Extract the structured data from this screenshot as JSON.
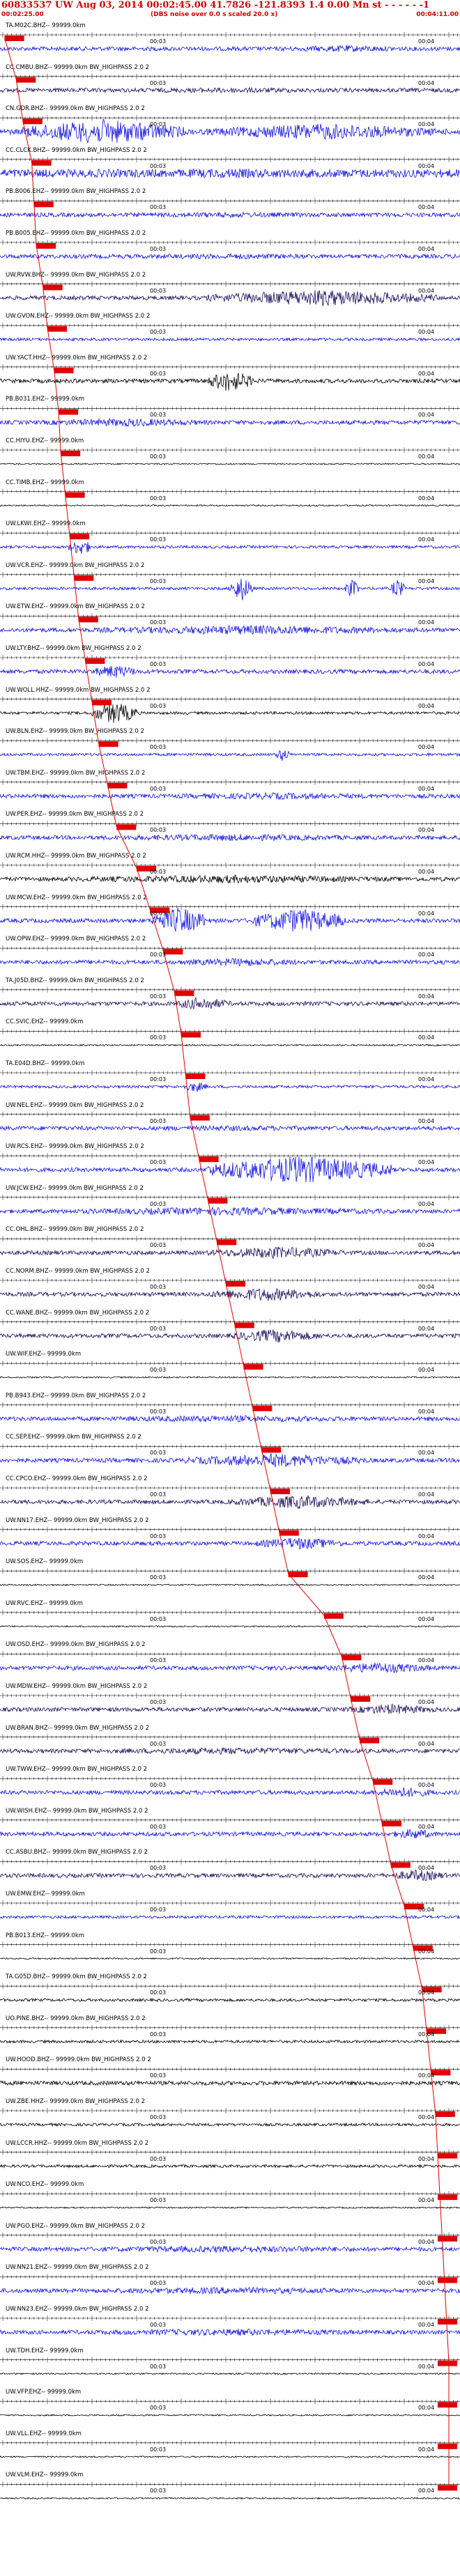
{
  "header": {
    "title": "60833537 UW Aug 03, 2014 00:02:45.00   41.7826 -121.8393  1.4 0.00 Mn st - - - - - -1",
    "start_time": "00:02:25.00",
    "note": "(DBS noise over 0.0 s scaled 20.0 x)",
    "end_time": "00:04:11.00"
  },
  "time_labels": [
    "00:03",
    "00:04"
  ],
  "colors": {
    "pick": "#e00000",
    "trace_blue": "#1010e0",
    "trace_black": "#000000",
    "trace_navy": "#1a0a5a",
    "header_text": "#d00000"
  },
  "traces": [
    {
      "label": "TA.M02C.BHZ-- 99999.0km",
      "color": "#1010e0",
      "amp": 3,
      "pick": 0.004,
      "bursts": [
        [
          0.55,
          0.95,
          5
        ]
      ]
    },
    {
      "label": "CC.CMBU.BHZ-- 99999.0km BW_HIGHPASS  2.0  2",
      "color": "#1a0a5a",
      "amp": 3,
      "pick": 0.03,
      "bursts": [
        [
          0.05,
          0.95,
          4
        ]
      ]
    },
    {
      "label": "CN.GDR.BHZ-- 99999.0km BW_HIGHPASS  2.0  2",
      "color": "#1010e0",
      "amp": 4,
      "pick": 0.045,
      "bursts": [
        [
          0.05,
          0.4,
          18
        ],
        [
          0.45,
          0.95,
          12
        ]
      ]
    },
    {
      "label": "CC.CLCK.BHZ-- 99999.0km BW_HIGHPASS  2.0  2",
      "color": "#1010e0",
      "amp": 6,
      "pick": 0.065,
      "bursts": [
        [
          0.02,
          0.98,
          7
        ]
      ]
    },
    {
      "label": "PB.B006.EHZ-- 99999.0km BW_HIGHPASS  2.0  2",
      "color": "#1010e0",
      "amp": 3,
      "pick": 0.07,
      "bursts": [
        [
          0.02,
          0.98,
          4
        ]
      ]
    },
    {
      "label": "PB.B005.EHZ-- 99999.0km BW_HIGHPASS  2.0  2",
      "color": "#1010e0",
      "amp": 3,
      "pick": 0.075,
      "bursts": [
        [
          0.02,
          0.98,
          4
        ]
      ]
    },
    {
      "label": "UW.RVW.BHZ-- 99999.0km BW_HIGHPASS  2.0  2",
      "color": "#1a0a5a",
      "amp": 3,
      "pick": 0.09,
      "bursts": [
        [
          0.45,
          0.95,
          12
        ]
      ]
    },
    {
      "label": "UW.GVON.EHZ-- 99999.0km BW_HIGHPASS  2.0  2",
      "color": "#1010e0",
      "amp": 2,
      "pick": 0.1,
      "bursts": []
    },
    {
      "label": "UW.YACT.HHZ-- 99999.0km BW_HIGHPASS  2.0  2",
      "color": "#000000",
      "amp": 3,
      "pick": 0.115,
      "bursts": [
        [
          0.45,
          0.55,
          16
        ]
      ]
    },
    {
      "label": "PB.B031.EHZ-- 99999.0km",
      "color": "#1010e0",
      "amp": 3,
      "pick": 0.125,
      "bursts": [
        [
          0.05,
          0.5,
          6
        ]
      ]
    },
    {
      "label": "CC.HIYU.EHZ-- 99999.0km",
      "color": "#000000",
      "amp": 1,
      "pick": 0.13,
      "bursts": []
    },
    {
      "label": "CC.TIMB.EHZ-- 99999.0km",
      "color": "#000000",
      "amp": 1,
      "pick": 0.14,
      "bursts": []
    },
    {
      "label": "UW.LKWI.EHZ-- 99999.0km",
      "color": "#1010e0",
      "amp": 2,
      "pick": 0.15,
      "bursts": [
        [
          0.15,
          0.2,
          12
        ]
      ]
    },
    {
      "label": "UW.VCR.EHZ-- 99999.0km BW_HIGHPASS  2.0  2",
      "color": "#1010e0",
      "amp": 2,
      "pick": 0.16,
      "bursts": [
        [
          0.5,
          0.55,
          18
        ],
        [
          0.75,
          0.78,
          14
        ],
        [
          0.85,
          0.88,
          14
        ]
      ]
    },
    {
      "label": "UW.ETW.EHZ-- 99999.0km BW_HIGHPASS  2.0  2",
      "color": "#1010e0",
      "amp": 3,
      "pick": 0.17,
      "bursts": [
        [
          0.15,
          0.95,
          7
        ]
      ]
    },
    {
      "label": "UW.LTY.BHZ-- 99999.0km BW_HIGHPASS  2.0  2",
      "color": "#1010e0",
      "amp": 3,
      "pick": 0.185,
      "bursts": [
        [
          0.2,
          0.3,
          10
        ]
      ]
    },
    {
      "label": "UW.WOLL.HHZ-- 99999.0km BW_HIGHPASS  2.0  2",
      "color": "#000000",
      "amp": 2,
      "pick": 0.2,
      "bursts": [
        [
          0.2,
          0.3,
          16
        ]
      ]
    },
    {
      "label": "UW.BLN.EHZ-- 99999.0km BW_HIGHPASS  2.0  2",
      "color": "#1010e0",
      "amp": 2,
      "pick": 0.215,
      "bursts": [
        [
          0.6,
          0.63,
          10
        ]
      ]
    },
    {
      "label": "UW.TBM.EHZ-- 99999.0km BW_HIGHPASS  2.0  2",
      "color": "#1010e0",
      "amp": 3,
      "pick": 0.235,
      "bursts": [
        [
          0.25,
          0.95,
          5
        ]
      ]
    },
    {
      "label": "UW.PER.EHZ-- 99999.0km BW_HIGHPASS  2.0  2",
      "color": "#1010e0",
      "amp": 3,
      "pick": 0.255,
      "bursts": [
        [
          0.05,
          0.95,
          5
        ]
      ]
    },
    {
      "label": "UW.RCM.HHZ-- 99999.0km BW_HIGHPASS  2.0  2",
      "color": "#000000",
      "amp": 3,
      "pick": 0.3,
      "bursts": [
        [
          0.05,
          0.95,
          6
        ]
      ]
    },
    {
      "label": "UW.MCW.EHZ-- 99999.0km BW_HIGHPASS  2.0  2",
      "color": "#1010e0",
      "amp": 3,
      "pick": 0.33,
      "bursts": [
        [
          0.33,
          0.45,
          20
        ],
        [
          0.55,
          0.75,
          18
        ]
      ]
    },
    {
      "label": "UW.OPW.EHZ-- 99999.0km BW_HIGHPASS  2.0  2",
      "color": "#1010e0",
      "amp": 3,
      "pick": 0.36,
      "bursts": [
        [
          0.35,
          0.7,
          6
        ]
      ]
    },
    {
      "label": "TA.J05D.BHZ-- 99999.0km BW_HIGHPASS  2.0  2",
      "color": "#1a0a5a",
      "amp": 3,
      "pick": 0.385,
      "bursts": [
        [
          0.38,
          0.5,
          10
        ]
      ]
    },
    {
      "label": "CC.SVIC.EHZ-- 99999.0km",
      "color": "#000000",
      "amp": 1,
      "pick": 0.4,
      "bursts": []
    },
    {
      "label": "TA.E04D.BHZ-- 99999.0km",
      "color": "#1010e0",
      "amp": 2,
      "pick": 0.41,
      "bursts": [
        [
          0.4,
          0.45,
          8
        ]
      ]
    },
    {
      "label": "UW.NEL.EHZ-- 99999.0km BW_HIGHPASS  2.0  2",
      "color": "#1010e0",
      "amp": 3,
      "pick": 0.42,
      "bursts": [
        [
          0.05,
          0.95,
          4
        ]
      ]
    },
    {
      "label": "UW.RCS.EHZ-- 99999.0km BW_HIGHPASS  2.0  2",
      "color": "#1010e0",
      "amp": 3,
      "pick": 0.44,
      "bursts": [
        [
          0.45,
          0.85,
          20
        ]
      ]
    },
    {
      "label": "UW.JCW.EHZ-- 99999.0km BW_HIGHPASS  2.0  2",
      "color": "#1010e0",
      "amp": 3,
      "pick": 0.46,
      "bursts": [
        [
          0.05,
          0.95,
          6
        ]
      ]
    },
    {
      "label": "CC.OHL.BHZ-- 99999.0km BW_HIGHPASS  2.0  2",
      "color": "#1a0a5a",
      "amp": 3,
      "pick": 0.48,
      "bursts": [
        [
          0.45,
          0.75,
          9
        ]
      ]
    },
    {
      "label": "CC.NORM.BHZ-- 99999.0km BW_HIGHPASS  2.0  2",
      "color": "#1a0a5a",
      "amp": 3,
      "pick": 0.5,
      "bursts": [
        [
          0.45,
          0.7,
          10
        ]
      ]
    },
    {
      "label": "CC.WANE.BHZ-- 99999.0km BW_HIGHPASS  2.0  2",
      "color": "#1a0a5a",
      "amp": 3,
      "pick": 0.52,
      "bursts": [
        [
          0.5,
          0.7,
          10
        ]
      ]
    },
    {
      "label": "UW.WIF.EHZ-- 99999.0km",
      "color": "#000000",
      "amp": 1,
      "pick": 0.54,
      "bursts": []
    },
    {
      "label": "PB.B943.EHZ-- 99999.0km BW_HIGHPASS  2.0  2",
      "color": "#1010e0",
      "amp": 3,
      "pick": 0.56,
      "bursts": [
        [
          0.05,
          0.95,
          5
        ]
      ]
    },
    {
      "label": "CC.SEP.EHZ-- 99999.0km BW_HIGHPASS  2.0  2",
      "color": "#1010e0",
      "amp": 3,
      "pick": 0.58,
      "bursts": [
        [
          0.4,
          0.8,
          10
        ]
      ]
    },
    {
      "label": "CC.CPCO.EHZ-- 99999.0km BW_HIGHPASS  2.0  2",
      "color": "#1a0a5a",
      "amp": 3,
      "pick": 0.6,
      "bursts": [
        [
          0.5,
          0.8,
          10
        ]
      ]
    },
    {
      "label": "UW.NN17.EHZ-- 99999.0km BW_HIGHPASS  2.0  2",
      "color": "#1010e0",
      "amp": 3,
      "pick": 0.62,
      "bursts": [
        [
          0.55,
          0.75,
          9
        ]
      ]
    },
    {
      "label": "UW.SOS.EHZ-- 99999.0km",
      "color": "#000000",
      "amp": 1,
      "pick": 0.64,
      "bursts": []
    },
    {
      "label": "UW.RVC.EHZ-- 99999.0km",
      "color": "#000000",
      "amp": 1,
      "pick": 0.72,
      "bursts": []
    },
    {
      "label": "UW.OSD.EHZ-- 99999.0km BW_HIGHPASS  2.0  2",
      "color": "#1010e0",
      "amp": 3,
      "pick": 0.76,
      "bursts": [
        [
          0.7,
          0.95,
          8
        ]
      ]
    },
    {
      "label": "UW.MDW.EHZ-- 99999.0km BW_HIGHPASS  2.0  2",
      "color": "#1a0a5a",
      "amp": 3,
      "pick": 0.78,
      "bursts": [
        [
          0.75,
          0.95,
          8
        ]
      ]
    },
    {
      "label": "UW.BRAN.BHZ-- 99999.0km BW_HIGHPASS  2.0  2",
      "color": "#1a0a5a",
      "amp": 3,
      "pick": 0.8,
      "bursts": [
        [
          0.05,
          0.95,
          5
        ]
      ]
    },
    {
      "label": "UW.TWW.EHZ-- 99999.0km BW_HIGHPASS  2.0  2",
      "color": "#1010e0",
      "amp": 3,
      "pick": 0.83,
      "bursts": [
        [
          0.8,
          0.95,
          8
        ]
      ]
    },
    {
      "label": "UW.WISH.EHZ-- 99999.0km BW_HIGHPASS  2.0  2",
      "color": "#1010e0",
      "amp": 3,
      "pick": 0.85,
      "bursts": [
        [
          0.85,
          0.95,
          8
        ]
      ]
    },
    {
      "label": "CC.ASBU.BHZ-- 99999.0km BW_HIGHPASS  2.0  2",
      "color": "#1a0a5a",
      "amp": 3,
      "pick": 0.87,
      "bursts": [
        [
          0.85,
          0.97,
          9
        ]
      ]
    },
    {
      "label": "UW.EMW.EHZ-- 99999.0km",
      "color": "#1010e0",
      "amp": 2,
      "pick": 0.9,
      "bursts": []
    },
    {
      "label": "PB.B013.EHZ-- 99999.0km",
      "color": "#000000",
      "amp": 1,
      "pick": 0.92,
      "bursts": []
    },
    {
      "label": "TA.G05D.BHZ-- 99999.0km BW_HIGHPASS  2.0  2",
      "color": "#000000",
      "amp": 2,
      "pick": 0.94,
      "bursts": []
    },
    {
      "label": "UO.PINE.BHZ-- 99999.0km BW_HIGHPASS  2.0  2",
      "color": "#000000",
      "amp": 2,
      "pick": 0.95,
      "bursts": []
    },
    {
      "label": "UW.HOOD.BHZ-- 99999.0km BW_HIGHPASS  2.0  2",
      "color": "#000000",
      "amp": 3,
      "pick": 0.96,
      "bursts": []
    },
    {
      "label": "UW.ZBE.HHZ-- 99999.0km BW_HIGHPASS  2.0  2",
      "color": "#000000",
      "amp": 2,
      "pick": 0.97,
      "bursts": []
    },
    {
      "label": "UW.LCCR.HHZ-- 99999.0km BW_HIGHPASS  2.0  2",
      "color": "#000000",
      "amp": 2,
      "pick": 0.975,
      "bursts": []
    },
    {
      "label": "UW.NCO.EHZ-- 99999.0km",
      "color": "#000000",
      "amp": 1,
      "pick": 0.98,
      "bursts": []
    },
    {
      "label": "UW.PGO.EHZ-- 99999.0km BW_HIGHPASS  2.0  2",
      "color": "#1010e0",
      "amp": 3,
      "pick": 0.985,
      "bursts": [
        [
          0.02,
          0.98,
          5
        ]
      ]
    },
    {
      "label": "UW.NN21.EHZ-- 99999.0km BW_HIGHPASS  2.0  2",
      "color": "#1010e0",
      "amp": 3,
      "pick": 0.99,
      "bursts": [
        [
          0.02,
          0.98,
          5
        ]
      ]
    },
    {
      "label": "UW.NN23.EHZ-- 99999.0km BW_HIGHPASS  2.0  2",
      "color": "#1010e0",
      "amp": 3,
      "pick": 0.995,
      "bursts": [
        [
          0.02,
          0.98,
          5
        ]
      ]
    },
    {
      "label": "UW.TDH.EHZ-- 99999.0km",
      "color": "#000000",
      "amp": 1,
      "pick": 1.0,
      "bursts": []
    },
    {
      "label": "UW.VFP.EHZ-- 99999.0km",
      "color": "#000000",
      "amp": 1,
      "pick": 1.0,
      "bursts": []
    },
    {
      "label": "UW.VLL.EHZ-- 99999.0km",
      "color": "#000000",
      "amp": 1,
      "pick": 1.0,
      "bursts": []
    },
    {
      "label": "UW.VLM.EHZ-- 99999.0km",
      "color": "#000000",
      "amp": 1,
      "pick": 1.0,
      "bursts": []
    }
  ]
}
